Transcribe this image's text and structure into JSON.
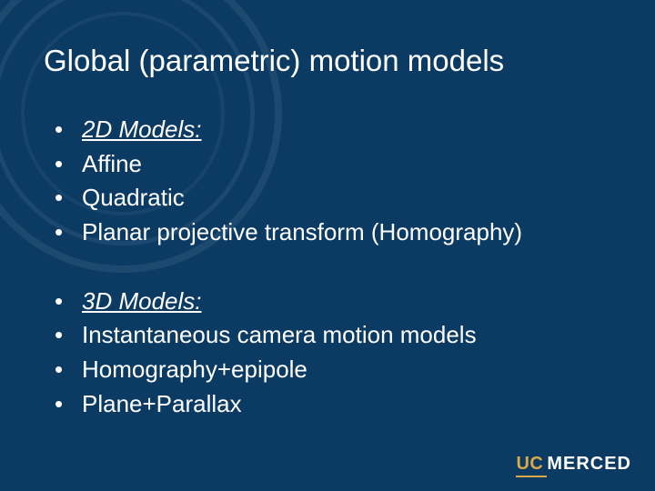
{
  "slide": {
    "title": "Global (parametric) motion models",
    "background_color": "#0b3a63",
    "text_color": "#ffffff",
    "title_fontsize": 33,
    "body_fontsize": 26,
    "groups": [
      {
        "heading": "2D Models:",
        "items": [
          "Affine",
          "Quadratic",
          "Planar projective transform (Homography)"
        ]
      },
      {
        "heading": "3D Models:",
        "items": [
          "Instantaneous camera motion models",
          "Homography+epipole",
          "Plane+Parallax"
        ]
      }
    ],
    "logo": {
      "part1": "UC",
      "part2": "MERCED",
      "accent_color": "#d9a94a",
      "text_color": "#ffffff"
    },
    "seal_overlay_color": "rgba(255,255,255,0.08)"
  }
}
